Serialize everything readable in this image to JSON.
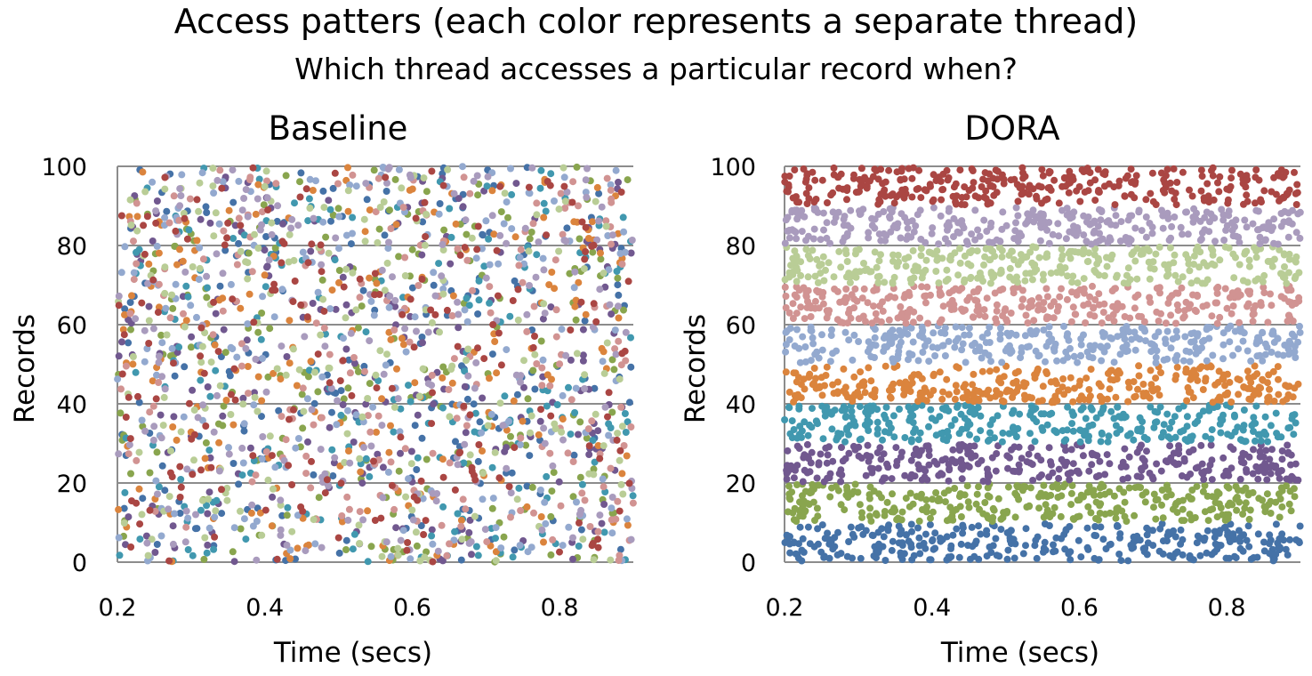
{
  "title": "Access patters (each color represents a separate thread)",
  "subtitle": "Which thread accesses a particular record when?",
  "thread_colors": [
    "#4572a7",
    "#89a54e",
    "#71588f",
    "#4198af",
    "#db843d",
    "#93a9cf",
    "#d19392",
    "#b9cd96",
    "#a99bbd",
    "#aa4643"
  ],
  "chart_data": [
    {
      "type": "scatter",
      "title": "Baseline",
      "xlabel": "Time (secs)",
      "ylabel": "Records",
      "xlim": [
        0.2,
        0.9
      ],
      "ylim": [
        0,
        100
      ],
      "xticks": [
        "0.2",
        "0.4",
        "0.6",
        "0.8"
      ],
      "yticks": [
        "0",
        "20",
        "40",
        "60",
        "80",
        "100"
      ],
      "grid": "horizontal",
      "threads": 10,
      "distribution": "all threads access records uniformly across 0-100",
      "points_per_thread": 200
    },
    {
      "type": "scatter",
      "title": "DORA",
      "xlabel": "Time (secs)",
      "ylabel": "Records",
      "xlim": [
        0.2,
        0.9
      ],
      "ylim": [
        0,
        100
      ],
      "xticks": [
        "0.2",
        "0.4",
        "0.6",
        "0.8"
      ],
      "yticks": [
        "0",
        "20",
        "40",
        "60",
        "80",
        "100"
      ],
      "grid": "horizontal",
      "threads": 10,
      "distribution": "each thread accesses only its own band of 10 records",
      "bands": [
        [
          0,
          10
        ],
        [
          10,
          20
        ],
        [
          20,
          30
        ],
        [
          30,
          40
        ],
        [
          40,
          50
        ],
        [
          50,
          60
        ],
        [
          60,
          70
        ],
        [
          70,
          80
        ],
        [
          80,
          90
        ],
        [
          90,
          100
        ]
      ],
      "points_per_thread": 320
    }
  ]
}
